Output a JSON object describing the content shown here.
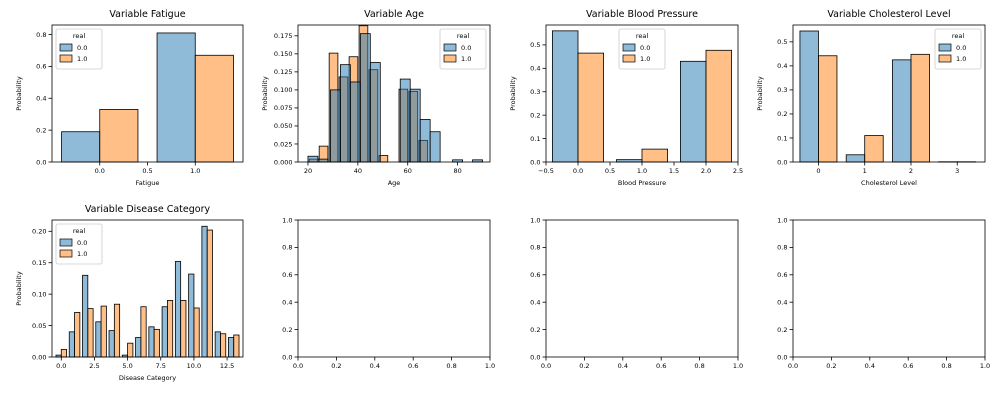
{
  "colors": {
    "s0": "#1f77b4",
    "s1": "#ff7f0e",
    "alpha": 0.5,
    "edge": "#000000"
  },
  "chart_data": [
    {
      "type": "bar",
      "title": "Variable Fatigue",
      "xlabel": "Fatigue",
      "ylabel": "Probability",
      "xlim": [
        -0.5,
        1.5
      ],
      "ylim": [
        0,
        0.86
      ],
      "xticks": [
        0.0,
        0.5,
        1.0
      ],
      "xtick_labels": [
        "0.0",
        "0.5",
        "1.0"
      ],
      "yticks": [
        0,
        0.2,
        0.4,
        0.6,
        0.8
      ],
      "ytick_labels": [
        "0.0",
        "0.2",
        "0.4",
        "0.6",
        "0.8"
      ],
      "legend": {
        "title": "real",
        "entries": [
          "0.0",
          "1.0"
        ],
        "placement": "top-left"
      },
      "series": [
        {
          "name": "0.0",
          "bars": [
            {
              "x0": -0.4,
              "x1": 0.0,
              "y": 0.19
            },
            {
              "x0": 0.6,
              "x1": 1.0,
              "y": 0.81
            }
          ]
        },
        {
          "name": "1.0",
          "bars": [
            {
              "x0": 0.0,
              "x1": 0.4,
              "y": 0.33
            },
            {
              "x0": 1.0,
              "x1": 1.4,
              "y": 0.67
            }
          ]
        }
      ]
    },
    {
      "type": "bar",
      "title": "Variable Age",
      "xlabel": "Age",
      "ylabel": "Probability",
      "xlim": [
        16,
        93
      ],
      "ylim": [
        0,
        0.19
      ],
      "xticks": [
        20,
        40,
        60,
        80
      ],
      "xtick_labels": [
        "20",
        "40",
        "60",
        "80"
      ],
      "yticks": [
        0,
        0.025,
        0.05,
        0.075,
        0.1,
        0.125,
        0.15,
        0.175
      ],
      "ytick_labels": [
        "0.000",
        "0.025",
        "0.050",
        "0.075",
        "0.100",
        "0.125",
        "0.150",
        "0.175"
      ],
      "legend": {
        "title": "real",
        "entries": [
          "0.0",
          "1.0"
        ],
        "placement": "top-right"
      },
      "series": [
        {
          "name": "1.0",
          "bars": [
            {
              "x0": 20.5,
              "x1": 24,
              "y": 0.004
            },
            {
              "x0": 24.5,
              "x1": 28,
              "y": 0.022
            },
            {
              "x0": 28.5,
              "x1": 32,
              "y": 0.151
            },
            {
              "x0": 32.5,
              "x1": 36,
              "y": 0.118
            },
            {
              "x0": 36.5,
              "x1": 40,
              "y": 0.146
            },
            {
              "x0": 40.5,
              "x1": 44,
              "y": 0.189
            },
            {
              "x0": 44.5,
              "x1": 48,
              "y": 0.128
            },
            {
              "x0": 48.5,
              "x1": 52,
              "y": 0.009
            },
            {
              "x0": 56.5,
              "x1": 60,
              "y": 0.101
            },
            {
              "x0": 60.5,
              "x1": 64,
              "y": 0.098
            },
            {
              "x0": 64.5,
              "x1": 68,
              "y": 0.03
            }
          ]
        },
        {
          "name": "0.0",
          "bars": [
            {
              "x0": 20,
              "x1": 24,
              "y": 0.008
            },
            {
              "x0": 24,
              "x1": 28,
              "y": 0.004
            },
            {
              "x0": 29,
              "x1": 33,
              "y": 0.1
            },
            {
              "x0": 33,
              "x1": 37,
              "y": 0.135
            },
            {
              "x0": 37,
              "x1": 41,
              "y": 0.111
            },
            {
              "x0": 41,
              "x1": 45,
              "y": 0.178
            },
            {
              "x0": 45,
              "x1": 49,
              "y": 0.138
            },
            {
              "x0": 57,
              "x1": 61,
              "y": 0.115
            },
            {
              "x0": 61,
              "x1": 65,
              "y": 0.101
            },
            {
              "x0": 65,
              "x1": 69,
              "y": 0.059
            },
            {
              "x0": 69,
              "x1": 73,
              "y": 0.042
            },
            {
              "x0": 78,
              "x1": 82,
              "y": 0.003
            },
            {
              "x0": 86,
              "x1": 90,
              "y": 0.003
            }
          ]
        }
      ]
    },
    {
      "type": "bar",
      "title": "Variable Blood Pressure",
      "xlabel": "Blood Pressure",
      "ylabel": "Probability",
      "xlim": [
        -0.5,
        2.5
      ],
      "ylim": [
        0,
        0.585
      ],
      "xticks": [
        -0.5,
        0.0,
        0.5,
        1.0,
        1.5,
        2.0,
        2.5
      ],
      "xtick_labels": [
        "−0.5",
        "0.0",
        "0.5",
        "1.0",
        "1.5",
        "2.0",
        "2.5"
      ],
      "yticks": [
        0,
        0.1,
        0.2,
        0.3,
        0.4,
        0.5
      ],
      "ytick_labels": [
        "0.0",
        "0.1",
        "0.2",
        "0.3",
        "0.4",
        "0.5"
      ],
      "legend": {
        "title": "real",
        "entries": [
          "0.0",
          "1.0"
        ],
        "placement": "top-center"
      },
      "series": [
        {
          "name": "0.0",
          "bars": [
            {
              "x0": -0.4,
              "x1": 0.0,
              "y": 0.56
            },
            {
              "x0": 0.6,
              "x1": 1.0,
              "y": 0.01
            },
            {
              "x0": 1.6,
              "x1": 2.0,
              "y": 0.43
            }
          ]
        },
        {
          "name": "1.0",
          "bars": [
            {
              "x0": 0.0,
              "x1": 0.4,
              "y": 0.465
            },
            {
              "x0": 1.0,
              "x1": 1.4,
              "y": 0.055
            },
            {
              "x0": 2.0,
              "x1": 2.4,
              "y": 0.477
            }
          ]
        }
      ]
    },
    {
      "type": "bar",
      "title": "Variable Cholesterol Level",
      "xlabel": "Cholesterol Level",
      "ylabel": "Probability",
      "xlim": [
        -0.55,
        3.6
      ],
      "ylim": [
        0,
        0.57
      ],
      "xticks": [
        0,
        1,
        2,
        3
      ],
      "xtick_labels": [
        "0",
        "1",
        "2",
        "3"
      ],
      "yticks": [
        0,
        0.1,
        0.2,
        0.3,
        0.4,
        0.5
      ],
      "ytick_labels": [
        "0.0",
        "0.1",
        "0.2",
        "0.3",
        "0.4",
        "0.5"
      ],
      "legend": {
        "title": "real",
        "entries": [
          "0.0",
          "1.0"
        ],
        "placement": "top-right"
      },
      "series": [
        {
          "name": "0.0",
          "bars": [
            {
              "x0": -0.4,
              "x1": 0.0,
              "y": 0.545
            },
            {
              "x0": 0.6,
              "x1": 1.0,
              "y": 0.03
            },
            {
              "x0": 1.6,
              "x1": 2.0,
              "y": 0.425
            },
            {
              "x0": 2.6,
              "x1": 3.0,
              "y": 0.001
            }
          ]
        },
        {
          "name": "1.0",
          "bars": [
            {
              "x0": 0.0,
              "x1": 0.4,
              "y": 0.442
            },
            {
              "x0": 1.0,
              "x1": 1.4,
              "y": 0.11
            },
            {
              "x0": 2.0,
              "x1": 2.4,
              "y": 0.448
            },
            {
              "x0": 3.0,
              "x1": 3.4,
              "y": 0.001
            }
          ]
        }
      ]
    },
    {
      "type": "bar",
      "title": "Variable Disease Category",
      "xlabel": "Disease Category",
      "ylabel": "Probability",
      "xlim": [
        -0.7,
        13.7
      ],
      "ylim": [
        0,
        0.218
      ],
      "xticks": [
        0,
        2.5,
        5,
        7.5,
        10,
        12.5
      ],
      "xtick_labels": [
        "0.0",
        "2.5",
        "5.0",
        "7.5",
        "10.0",
        "12.5"
      ],
      "yticks": [
        0,
        0.05,
        0.1,
        0.15,
        0.2
      ],
      "ytick_labels": [
        "0.00",
        "0.05",
        "0.10",
        "0.15",
        "0.20"
      ],
      "legend": {
        "title": "real",
        "entries": [
          "0.0",
          "1.0"
        ],
        "placement": "top-left"
      },
      "series": [
        {
          "name": "0.0",
          "bars": [
            {
              "x0": -0.4,
              "x1": 0.0,
              "y": 0.003
            },
            {
              "x0": 0.6,
              "x1": 1.0,
              "y": 0.04
            },
            {
              "x0": 1.6,
              "x1": 2.0,
              "y": 0.13
            },
            {
              "x0": 2.6,
              "x1": 3.0,
              "y": 0.056
            },
            {
              "x0": 3.6,
              "x1": 4.0,
              "y": 0.042
            },
            {
              "x0": 4.6,
              "x1": 5.0,
              "y": 0.003
            },
            {
              "x0": 5.6,
              "x1": 6.0,
              "y": 0.031
            },
            {
              "x0": 6.6,
              "x1": 7.0,
              "y": 0.048
            },
            {
              "x0": 7.6,
              "x1": 8.0,
              "y": 0.08
            },
            {
              "x0": 8.6,
              "x1": 9.0,
              "y": 0.152
            },
            {
              "x0": 9.6,
              "x1": 10.0,
              "y": 0.132
            },
            {
              "x0": 10.6,
              "x1": 11.0,
              "y": 0.208
            },
            {
              "x0": 11.6,
              "x1": 12.0,
              "y": 0.04
            },
            {
              "x0": 12.6,
              "x1": 13.0,
              "y": 0.031
            }
          ]
        },
        {
          "name": "1.0",
          "bars": [
            {
              "x0": 0.0,
              "x1": 0.4,
              "y": 0.012
            },
            {
              "x0": 1.0,
              "x1": 1.4,
              "y": 0.071
            },
            {
              "x0": 2.0,
              "x1": 2.4,
              "y": 0.077
            },
            {
              "x0": 3.0,
              "x1": 3.4,
              "y": 0.081
            },
            {
              "x0": 4.0,
              "x1": 4.4,
              "y": 0.084
            },
            {
              "x0": 5.0,
              "x1": 5.4,
              "y": 0.022
            },
            {
              "x0": 6.0,
              "x1": 6.4,
              "y": 0.08
            },
            {
              "x0": 7.0,
              "x1": 7.4,
              "y": 0.044
            },
            {
              "x0": 8.0,
              "x1": 8.4,
              "y": 0.09
            },
            {
              "x0": 9.0,
              "x1": 9.4,
              "y": 0.09
            },
            {
              "x0": 10.0,
              "x1": 10.4,
              "y": 0.078
            },
            {
              "x0": 11.0,
              "x1": 11.4,
              "y": 0.202
            },
            {
              "x0": 12.0,
              "x1": 12.4,
              "y": 0.037
            },
            {
              "x0": 13.0,
              "x1": 13.4,
              "y": 0.035
            }
          ]
        }
      ]
    },
    {
      "type": "bar",
      "title": "",
      "xlabel": "",
      "ylabel": "",
      "xlim": [
        0,
        1
      ],
      "ylim": [
        0,
        1
      ],
      "xticks": [
        0,
        0.2,
        0.4,
        0.6,
        0.8,
        1.0
      ],
      "xtick_labels": [
        "0.0",
        "0.2",
        "0.4",
        "0.6",
        "0.8",
        "1.0"
      ],
      "yticks": [
        0,
        0.2,
        0.4,
        0.6,
        0.8,
        1.0
      ],
      "ytick_labels": [
        "0.0",
        "0.2",
        "0.4",
        "0.6",
        "0.8",
        "1.0"
      ],
      "series": []
    },
    {
      "type": "bar",
      "title": "",
      "xlabel": "",
      "ylabel": "",
      "xlim": [
        0,
        1
      ],
      "ylim": [
        0,
        1
      ],
      "xticks": [
        0,
        0.2,
        0.4,
        0.6,
        0.8,
        1.0
      ],
      "xtick_labels": [
        "0.0",
        "0.2",
        "0.4",
        "0.6",
        "0.8",
        "1.0"
      ],
      "yticks": [
        0,
        0.2,
        0.4,
        0.6,
        0.8,
        1.0
      ],
      "ytick_labels": [
        "0.0",
        "0.2",
        "0.4",
        "0.6",
        "0.8",
        "1.0"
      ],
      "series": []
    },
    {
      "type": "bar",
      "title": "",
      "xlabel": "",
      "ylabel": "",
      "xlim": [
        0,
        1
      ],
      "ylim": [
        0,
        1
      ],
      "xticks": [
        0,
        0.2,
        0.4,
        0.6,
        0.8,
        1.0
      ],
      "xtick_labels": [
        "0.0",
        "0.2",
        "0.4",
        "0.6",
        "0.8",
        "1.0"
      ],
      "yticks": [
        0,
        0.2,
        0.4,
        0.6,
        0.8,
        1.0
      ],
      "ytick_labels": [
        "0.0",
        "0.2",
        "0.4",
        "0.6",
        "0.8",
        "1.0"
      ],
      "series": []
    }
  ]
}
